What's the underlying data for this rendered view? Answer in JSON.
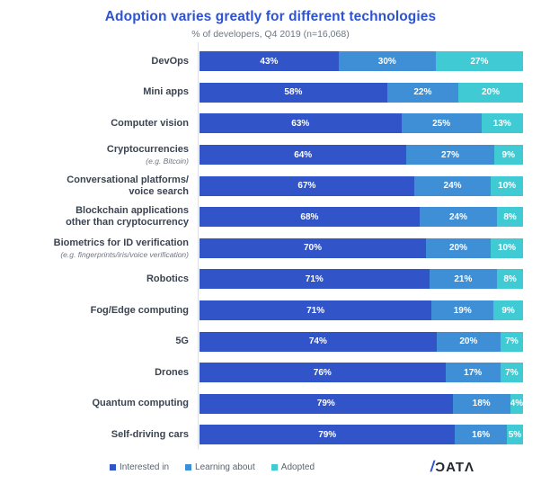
{
  "header": {
    "title": "Adoption varies greatly for different technologies",
    "subtitle": "% of developers, Q4 2019 (n=16,068)"
  },
  "chart_data": {
    "type": "bar",
    "orientation": "horizontal",
    "stacked": true,
    "unit": "%",
    "xlim": [
      0,
      100
    ],
    "grid": false,
    "legend_position": "bottom-left",
    "series_names": [
      "Interested in",
      "Learning about",
      "Adopted"
    ],
    "colors": [
      "#3154c8",
      "#3e8fd6",
      "#40cbd4"
    ],
    "rows": [
      {
        "label_lines": [
          "DevOps"
        ],
        "sublabel": "",
        "values": [
          43,
          30,
          27
        ]
      },
      {
        "label_lines": [
          "Mini apps"
        ],
        "sublabel": "",
        "values": [
          58,
          22,
          20
        ]
      },
      {
        "label_lines": [
          "Computer vision"
        ],
        "sublabel": "",
        "values": [
          63,
          25,
          13
        ]
      },
      {
        "label_lines": [
          "Cryptocurrencies"
        ],
        "sublabel": "(e.g. Bitcoin)",
        "values": [
          64,
          27,
          9
        ]
      },
      {
        "label_lines": [
          "Conversational platforms/",
          "voice search"
        ],
        "sublabel": "",
        "values": [
          67,
          24,
          10
        ]
      },
      {
        "label_lines": [
          "Blockchain applications",
          "other than cryptocurrency"
        ],
        "sublabel": "",
        "values": [
          68,
          24,
          8
        ]
      },
      {
        "label_lines": [
          "Biometrics for ID verification"
        ],
        "sublabel": "(e.g. fingerprints/iris/voice verification)",
        "values": [
          70,
          20,
          10
        ]
      },
      {
        "label_lines": [
          "Robotics"
        ],
        "sublabel": "",
        "values": [
          71,
          21,
          8
        ]
      },
      {
        "label_lines": [
          "Fog/Edge computing"
        ],
        "sublabel": "",
        "values": [
          71,
          19,
          9
        ]
      },
      {
        "label_lines": [
          "5G"
        ],
        "sublabel": "",
        "values": [
          74,
          20,
          7
        ]
      },
      {
        "label_lines": [
          "Drones"
        ],
        "sublabel": "",
        "values": [
          76,
          17,
          7
        ]
      },
      {
        "label_lines": [
          "Quantum computing"
        ],
        "sublabel": "",
        "values": [
          79,
          18,
          4
        ]
      },
      {
        "label_lines": [
          "Self-driving cars"
        ],
        "sublabel": "",
        "values": [
          79,
          16,
          5
        ]
      }
    ]
  },
  "legend": {
    "items": [
      {
        "label": "Interested in",
        "color": "#3154c8"
      },
      {
        "label": "Learning about",
        "color": "#3e8fd6"
      },
      {
        "label": "Adopted",
        "color": "#40cbd4"
      }
    ]
  },
  "logo": {
    "slash": "/",
    "text": "ƆATΛ",
    "slash_color": "#2d53d6",
    "text_color": "#23272e"
  }
}
